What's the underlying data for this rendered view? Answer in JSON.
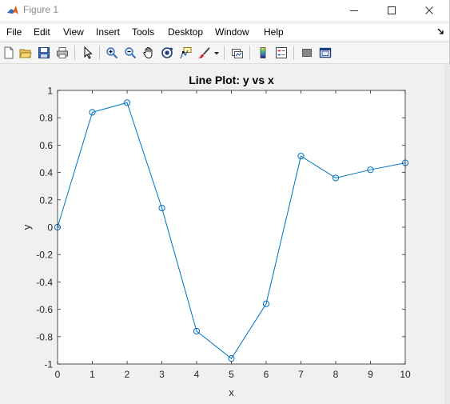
{
  "window": {
    "title": "Figure 1",
    "controls": {
      "minimize": "minimize-icon",
      "maximize": "maximize-icon",
      "close": "close-icon"
    }
  },
  "menu": {
    "items": [
      "File",
      "Edit",
      "View",
      "Insert",
      "Tools",
      "Desktop",
      "Window",
      "Help"
    ]
  },
  "toolbar": {
    "icons": [
      "new-figure-icon",
      "open-file-icon",
      "save-icon",
      "print-icon",
      "pointer-icon",
      "zoom-in-icon",
      "zoom-out-icon",
      "pan-icon",
      "rotate-3d-icon",
      "data-cursor-icon",
      "brush-icon",
      "link-plot-icon",
      "colorbar-icon",
      "legend-icon",
      "hide-plot-tools-icon",
      "show-plot-tools-icon"
    ]
  },
  "colors": {
    "series": "#0072bd",
    "axes_bg": "#ffffff",
    "figure_bg": "#f0f0f0"
  },
  "chart_data": {
    "type": "line",
    "title": "Line Plot: y vs x",
    "xlabel": "x",
    "ylabel": "y",
    "xlim": [
      0,
      10
    ],
    "ylim": [
      -1,
      1
    ],
    "xticks": [
      "0",
      "1",
      "2",
      "3",
      "4",
      "5",
      "6",
      "7",
      "8",
      "9",
      "10"
    ],
    "yticks": [
      "-1",
      "-0.8",
      "-0.6",
      "-0.4",
      "-0.2",
      "0",
      "0.2",
      "0.4",
      "0.6",
      "0.8",
      "1"
    ],
    "grid": false,
    "marker": "circle",
    "series": [
      {
        "x": [
          0,
          1,
          2,
          3,
          4,
          5,
          6,
          7,
          8,
          9,
          10
        ],
        "y": [
          0,
          0.84,
          0.91,
          0.14,
          -0.76,
          -0.96,
          -0.56,
          0.52,
          0.36,
          0.42,
          0.47
        ]
      }
    ]
  }
}
